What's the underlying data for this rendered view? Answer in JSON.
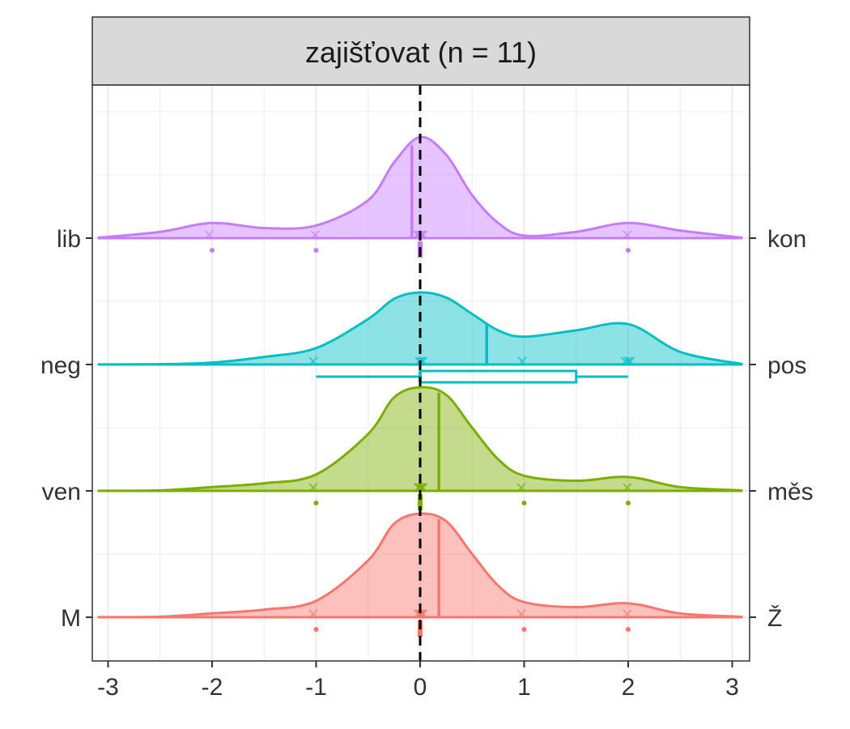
{
  "chart_data": {
    "type": "ridgeline",
    "title": "zajišťovat (n = 11)",
    "xlabel": "",
    "ylabel": "",
    "xlim": [
      -3.1,
      3.1
    ],
    "x_ticks": [
      "-3",
      "-2",
      "-1",
      "0",
      "1",
      "2",
      "3"
    ],
    "x_tick_values": [
      -3,
      -2,
      -1,
      0,
      1,
      2,
      3
    ],
    "reference_line_x": 0,
    "grid": true,
    "legend": "none",
    "series": [
      {
        "left_label": "M",
        "right_label": "Ž",
        "color": "#F8766D",
        "mean": 0.18,
        "points": [
          -1,
          0,
          0,
          0,
          0,
          0,
          0,
          1,
          2
        ],
        "density": [
          [
            -3.1,
            0.001
          ],
          [
            -2.5,
            0.004
          ],
          [
            -2,
            0.03
          ],
          [
            -1.5,
            0.06
          ],
          [
            -1,
            0.13
          ],
          [
            -0.5,
            0.45
          ],
          [
            -0.25,
            0.74
          ],
          [
            0,
            0.82
          ],
          [
            0.25,
            0.76
          ],
          [
            0.5,
            0.5
          ],
          [
            0.75,
            0.25
          ],
          [
            1,
            0.12
          ],
          [
            1.5,
            0.08
          ],
          [
            2,
            0.11
          ],
          [
            2.5,
            0.03
          ],
          [
            3.1,
            0.003
          ]
        ]
      },
      {
        "left_label": "ven",
        "right_label": "měs",
        "color": "#7CAE00",
        "mean": 0.18,
        "points": [
          -1,
          0,
          0,
          0,
          0,
          0,
          0,
          1,
          2
        ],
        "density": [
          [
            -3.1,
            0.001
          ],
          [
            -2.5,
            0.004
          ],
          [
            -2,
            0.03
          ],
          [
            -1.5,
            0.06
          ],
          [
            -1,
            0.13
          ],
          [
            -0.5,
            0.45
          ],
          [
            -0.25,
            0.74
          ],
          [
            0,
            0.82
          ],
          [
            0.25,
            0.76
          ],
          [
            0.5,
            0.5
          ],
          [
            0.75,
            0.25
          ],
          [
            1,
            0.12
          ],
          [
            1.5,
            0.08
          ],
          [
            2,
            0.11
          ],
          [
            2.5,
            0.03
          ],
          [
            3.1,
            0.003
          ]
        ]
      },
      {
        "left_label": "neg",
        "right_label": "pos",
        "color": "#00BFC4",
        "mean": 0.64,
        "points": [
          -1,
          0,
          0,
          0,
          1,
          2,
          2,
          2
        ],
        "boxplot": {
          "whisker_low": -1,
          "q1": 0,
          "median": 0,
          "q3": 1.5,
          "whisker_high": 2
        },
        "density": [
          [
            -3.1,
            0.001
          ],
          [
            -2.5,
            0.003
          ],
          [
            -2,
            0.015
          ],
          [
            -1.5,
            0.06
          ],
          [
            -1,
            0.13
          ],
          [
            -0.5,
            0.36
          ],
          [
            -0.25,
            0.52
          ],
          [
            0,
            0.57
          ],
          [
            0.25,
            0.53
          ],
          [
            0.5,
            0.4
          ],
          [
            0.75,
            0.27
          ],
          [
            1,
            0.22
          ],
          [
            1.5,
            0.27
          ],
          [
            2,
            0.32
          ],
          [
            2.5,
            0.1
          ],
          [
            3.1,
            0.003
          ]
        ]
      },
      {
        "left_label": "lib",
        "right_label": "kon",
        "color": "#C77CFF",
        "mean": -0.08,
        "points": [
          -2,
          -1,
          0,
          0,
          0,
          0,
          0,
          0,
          2
        ],
        "density": [
          [
            -3.1,
            0.003
          ],
          [
            -2.5,
            0.05
          ],
          [
            -2,
            0.12
          ],
          [
            -1.5,
            0.08
          ],
          [
            -1,
            0.1
          ],
          [
            -0.5,
            0.3
          ],
          [
            -0.25,
            0.6
          ],
          [
            0,
            0.8
          ],
          [
            0.25,
            0.66
          ],
          [
            0.5,
            0.34
          ],
          [
            0.75,
            0.12
          ],
          [
            1,
            0.02
          ],
          [
            1.5,
            0.05
          ],
          [
            2,
            0.12
          ],
          [
            2.5,
            0.06
          ],
          [
            3.1,
            0.003
          ]
        ]
      }
    ]
  }
}
